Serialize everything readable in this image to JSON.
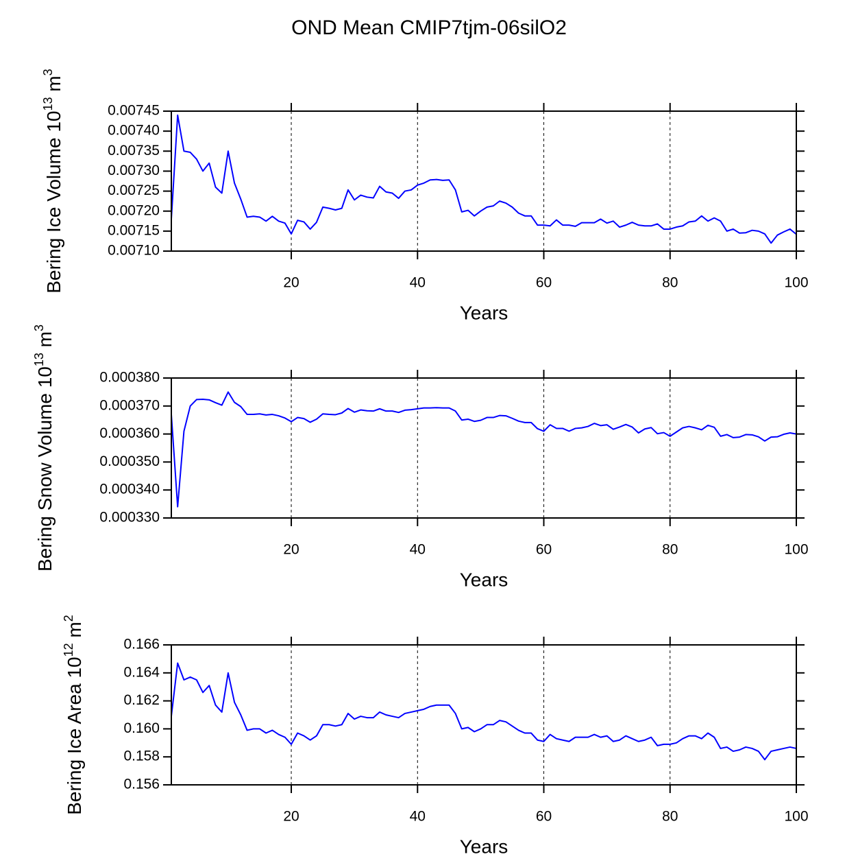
{
  "title": "OND Mean CMIP7tjm-06silO2",
  "chart_data": [
    {
      "type": "line",
      "xlabel": "Years",
      "ylabel": [
        "Bering Ice Volume 10",
        "13",
        " m",
        "3"
      ],
      "xlim": [
        1,
        100
      ],
      "xticks": [
        20,
        40,
        60,
        80,
        100
      ],
      "grid": "x",
      "ylim": [
        0.0071,
        0.00745
      ],
      "yticks": [
        {
          "value": 0.0071,
          "label": "0.00710"
        },
        {
          "value": 0.00715,
          "label": "0.00715"
        },
        {
          "value": 0.0072,
          "label": "0.00720"
        },
        {
          "value": 0.00725,
          "label": "0.00725"
        },
        {
          "value": 0.0073,
          "label": "0.00730"
        },
        {
          "value": 0.00735,
          "label": "0.00735"
        },
        {
          "value": 0.0074,
          "label": "0.00740"
        },
        {
          "value": 0.00745,
          "label": "0.00745"
        }
      ],
      "x": [
        1,
        2,
        3,
        4,
        5,
        6,
        7,
        8,
        9,
        10,
        11,
        12,
        13,
        14,
        15,
        16,
        17,
        18,
        19,
        20,
        21,
        22,
        23,
        24,
        25,
        26,
        27,
        28,
        29,
        30,
        31,
        32,
        33,
        34,
        35,
        36,
        37,
        38,
        39,
        40,
        41,
        42,
        43,
        44,
        45,
        46,
        47,
        48,
        49,
        50,
        51,
        52,
        53,
        54,
        55,
        56,
        57,
        58,
        59,
        60,
        61,
        62,
        63,
        64,
        65,
        66,
        67,
        68,
        69,
        70,
        71,
        72,
        73,
        74,
        75,
        76,
        77,
        78,
        79,
        80,
        81,
        82,
        83,
        84,
        85,
        86,
        87,
        88,
        89,
        90,
        91,
        92,
        93,
        94,
        95,
        96,
        97,
        98,
        99,
        100
      ],
      "color": "#0000ff",
      "values": [
        0.00718,
        0.00744,
        0.00735,
        0.007347,
        0.00733,
        0.0073,
        0.00732,
        0.00726,
        0.007245,
        0.00735,
        0.00727,
        0.00723,
        0.007185,
        0.007187,
        0.007185,
        0.007175,
        0.007187,
        0.007175,
        0.00717,
        0.007143,
        0.007177,
        0.007173,
        0.007155,
        0.007172,
        0.00721,
        0.007207,
        0.007203,
        0.007207,
        0.007253,
        0.007228,
        0.00724,
        0.007235,
        0.007233,
        0.007262,
        0.007248,
        0.007245,
        0.007232,
        0.00725,
        0.007253,
        0.007265,
        0.00727,
        0.007278,
        0.007279,
        0.007277,
        0.007278,
        0.007253,
        0.007198,
        0.007202,
        0.007188,
        0.0072,
        0.00721,
        0.007213,
        0.007225,
        0.00722,
        0.00721,
        0.007195,
        0.007188,
        0.007188,
        0.007165,
        0.007165,
        0.007163,
        0.007178,
        0.007165,
        0.007165,
        0.007162,
        0.007171,
        0.007171,
        0.007171,
        0.00718,
        0.00717,
        0.007175,
        0.00716,
        0.007165,
        0.007172,
        0.007165,
        0.007163,
        0.007163,
        0.007168,
        0.007155,
        0.007155,
        0.00716,
        0.007163,
        0.007173,
        0.007175,
        0.007188,
        0.007175,
        0.007183,
        0.007175,
        0.00715,
        0.007155,
        0.007145,
        0.007146,
        0.007152,
        0.00715,
        0.007143,
        0.00712,
        0.00714,
        0.007148,
        0.007155,
        0.007142
      ]
    },
    {
      "type": "line",
      "xlabel": "Years",
      "ylabel": [
        "Bering Snow Volume 10",
        "13",
        " m",
        "3"
      ],
      "xlim": [
        1,
        100
      ],
      "xticks": [
        20,
        40,
        60,
        80,
        100
      ],
      "grid": "x",
      "ylim": [
        0.00033,
        0.00038
      ],
      "yticks": [
        {
          "value": 0.00033,
          "label": "0.000330"
        },
        {
          "value": 0.00034,
          "label": "0.000340"
        },
        {
          "value": 0.00035,
          "label": "0.000350"
        },
        {
          "value": 0.00036,
          "label": "0.000360"
        },
        {
          "value": 0.00037,
          "label": "0.000370"
        },
        {
          "value": 0.00038,
          "label": "0.000380"
        }
      ],
      "x": [
        1,
        2,
        3,
        4,
        5,
        6,
        7,
        8,
        9,
        10,
        11,
        12,
        13,
        14,
        15,
        16,
        17,
        18,
        19,
        20,
        21,
        22,
        23,
        24,
        25,
        26,
        27,
        28,
        29,
        30,
        31,
        32,
        33,
        34,
        35,
        36,
        37,
        38,
        39,
        40,
        41,
        42,
        43,
        44,
        45,
        46,
        47,
        48,
        49,
        50,
        51,
        52,
        53,
        54,
        55,
        56,
        57,
        58,
        59,
        60,
        61,
        62,
        63,
        64,
        65,
        66,
        67,
        68,
        69,
        70,
        71,
        72,
        73,
        74,
        75,
        76,
        77,
        78,
        79,
        80,
        81,
        82,
        83,
        84,
        85,
        86,
        87,
        88,
        89,
        90,
        91,
        92,
        93,
        94,
        95,
        96,
        97,
        98,
        99,
        100
      ],
      "color": "#0000ff",
      "values": [
        0.000367,
        0.000334,
        0.000361,
        0.00037,
        0.0003723,
        0.0003724,
        0.0003722,
        0.0003712,
        0.0003703,
        0.000375,
        0.0003713,
        0.0003698,
        0.000367,
        0.000367,
        0.0003672,
        0.0003668,
        0.000367,
        0.0003665,
        0.0003657,
        0.0003644,
        0.0003659,
        0.0003655,
        0.0003642,
        0.0003653,
        0.0003672,
        0.000367,
        0.0003669,
        0.0003675,
        0.0003691,
        0.0003678,
        0.0003686,
        0.0003683,
        0.0003682,
        0.000369,
        0.0003682,
        0.0003682,
        0.0003677,
        0.0003685,
        0.0003687,
        0.000369,
        0.0003693,
        0.0003693,
        0.0003694,
        0.0003693,
        0.0003693,
        0.0003682,
        0.000365,
        0.0003653,
        0.0003645,
        0.0003649,
        0.0003659,
        0.0003659,
        0.0003666,
        0.0003665,
        0.0003656,
        0.0003646,
        0.0003641,
        0.0003641,
        0.0003619,
        0.000361,
        0.0003633,
        0.000362,
        0.000362,
        0.000361,
        0.000362,
        0.0003622,
        0.0003627,
        0.0003638,
        0.000363,
        0.0003633,
        0.0003617,
        0.0003625,
        0.0003634,
        0.0003625,
        0.0003604,
        0.0003618,
        0.0003623,
        0.0003601,
        0.0003605,
        0.0003592,
        0.0003607,
        0.0003622,
        0.0003627,
        0.0003622,
        0.0003615,
        0.0003631,
        0.0003624,
        0.0003592,
        0.0003598,
        0.0003587,
        0.0003589,
        0.0003598,
        0.0003597,
        0.000359,
        0.0003575,
        0.0003589,
        0.000359,
        0.0003599,
        0.0003604,
        0.00036
      ]
    },
    {
      "type": "line",
      "xlabel": "Years",
      "ylabel": [
        "Bering Ice Area 10",
        "12",
        " m",
        "2"
      ],
      "xlim": [
        1,
        100
      ],
      "xticks": [
        20,
        40,
        60,
        80,
        100
      ],
      "grid": "x",
      "ylim": [
        0.156,
        0.166
      ],
      "yticks": [
        0.156,
        0.158,
        {
          "value": 0.16,
          "label": "0.160"
        },
        0.162,
        0.164,
        0.166
      ],
      "x": [
        1,
        2,
        3,
        4,
        5,
        6,
        7,
        8,
        9,
        10,
        11,
        12,
        13,
        14,
        15,
        16,
        17,
        18,
        19,
        20,
        21,
        22,
        23,
        24,
        25,
        26,
        27,
        28,
        29,
        30,
        31,
        32,
        33,
        34,
        35,
        36,
        37,
        38,
        39,
        40,
        41,
        42,
        43,
        44,
        45,
        46,
        47,
        48,
        49,
        50,
        51,
        52,
        53,
        54,
        55,
        56,
        57,
        58,
        59,
        60,
        61,
        62,
        63,
        64,
        65,
        66,
        67,
        68,
        69,
        70,
        71,
        72,
        73,
        74,
        75,
        76,
        77,
        78,
        79,
        80,
        81,
        82,
        83,
        84,
        85,
        86,
        87,
        88,
        89,
        90,
        91,
        92,
        93,
        94,
        95,
        96,
        97,
        98,
        99,
        100
      ],
      "color": "#0000ff",
      "values": [
        0.1609,
        0.1647,
        0.1635,
        0.1637,
        0.1635,
        0.1626,
        0.1631,
        0.1617,
        0.1612,
        0.164,
        0.1619,
        0.161,
        0.1599,
        0.16,
        0.16,
        0.1597,
        0.1599,
        0.1596,
        0.1594,
        0.1589,
        0.1597,
        0.1595,
        0.1592,
        0.1595,
        0.1603,
        0.1603,
        0.1602,
        0.1603,
        0.1611,
        0.1607,
        0.1609,
        0.1608,
        0.1608,
        0.1612,
        0.161,
        0.1609,
        0.1608,
        0.1611,
        0.1612,
        0.1613,
        0.1614,
        0.1616,
        0.1617,
        0.1617,
        0.1617,
        0.1611,
        0.16,
        0.1601,
        0.1598,
        0.16,
        0.1603,
        0.1603,
        0.1606,
        0.1605,
        0.1602,
        0.1599,
        0.1597,
        0.1597,
        0.1592,
        0.1591,
        0.1596,
        0.1593,
        0.1592,
        0.1591,
        0.1594,
        0.1594,
        0.1594,
        0.1596,
        0.1594,
        0.1595,
        0.1591,
        0.1592,
        0.1595,
        0.1593,
        0.1591,
        0.1592,
        0.1594,
        0.1588,
        0.1589,
        0.1589,
        0.159,
        0.1593,
        0.1595,
        0.1595,
        0.1593,
        0.1597,
        0.1594,
        0.1586,
        0.1587,
        0.1584,
        0.1585,
        0.1587,
        0.1586,
        0.1584,
        0.1578,
        0.1584,
        0.1585,
        0.1586,
        0.1587,
        0.1586
      ]
    }
  ]
}
